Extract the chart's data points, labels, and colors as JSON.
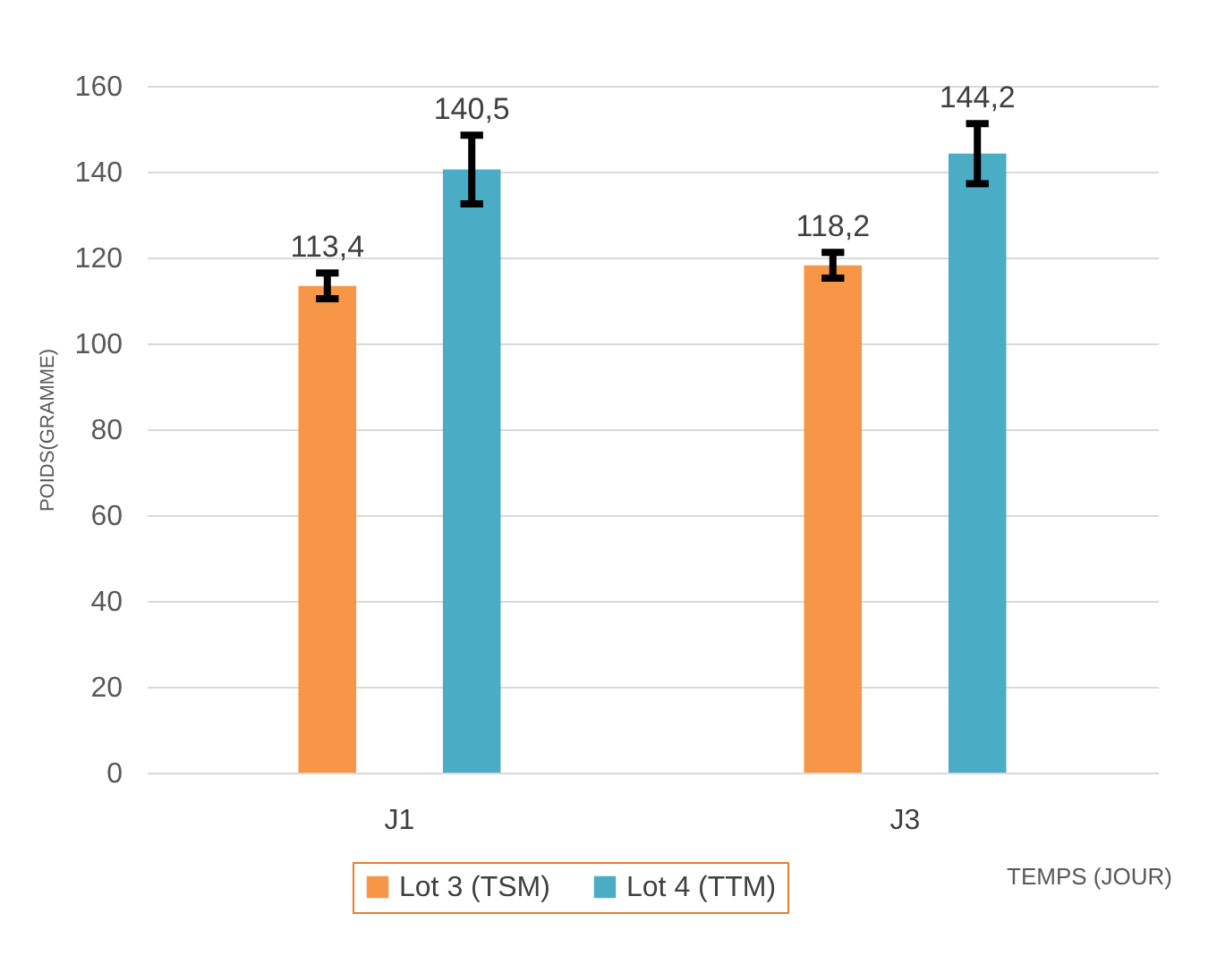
{
  "chart_data": {
    "type": "bar",
    "xlabel": "TEMPS (JOUR)",
    "ylabel": "POIDS(GRAMME)",
    "categories": [
      "J1",
      "J3"
    ],
    "series": [
      {
        "name": "Lot 3 (TSM)",
        "color": "#f79646",
        "values": [
          113.4,
          118.2
        ],
        "errors": [
          3,
          3
        ],
        "value_labels": [
          "113,4",
          "118,2"
        ]
      },
      {
        "name": "Lot 4 (TTM)",
        "color": "#4bacc6",
        "values": [
          140.5,
          144.2
        ],
        "errors": [
          8,
          7
        ],
        "value_labels": [
          "140,5",
          "144,2"
        ]
      }
    ],
    "ylim": [
      0,
      160
    ],
    "yticks": [
      0,
      20,
      40,
      60,
      80,
      100,
      120,
      140,
      160
    ],
    "grid": "y",
    "legend": "bottom"
  }
}
